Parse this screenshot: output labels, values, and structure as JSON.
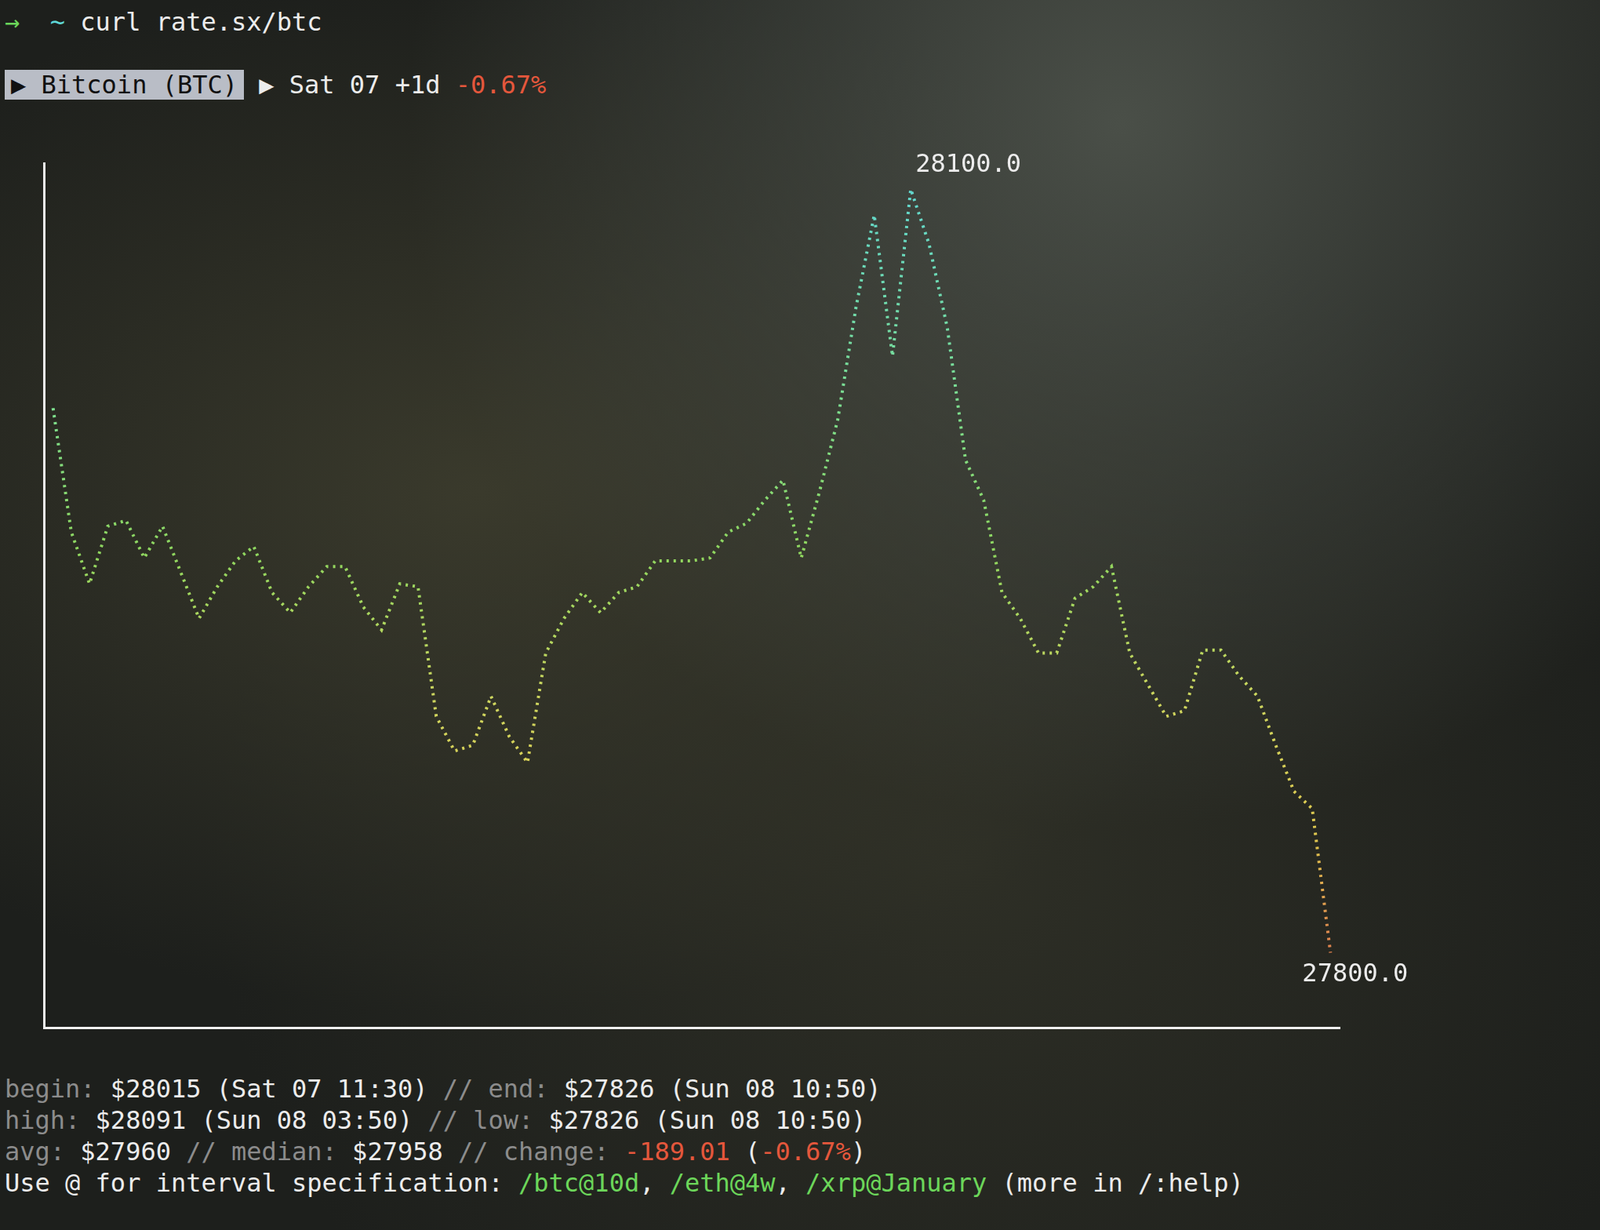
{
  "prompt": [
    {
      "text": "→",
      "style": "green"
    },
    {
      "text": "  ",
      "style": "bright"
    },
    {
      "text": "~",
      "style": "cyan"
    },
    {
      "text": " curl rate.sx/btc",
      "style": "bright"
    }
  ],
  "header": [
    {
      "text": "▶ Bitcoin (BTC)",
      "style": "box"
    },
    {
      "text": " ▶ Sat 07 +1d ",
      "style": "bright"
    },
    {
      "text": "-0.67%",
      "style": "red"
    }
  ],
  "chart_data": {
    "type": "line",
    "categories": [
      null,
      null,
      null,
      null,
      null,
      null,
      null,
      null,
      null,
      null,
      null,
      null,
      null,
      null,
      null,
      null,
      null,
      null,
      null,
      null,
      null,
      null,
      null,
      null,
      null,
      null,
      null,
      null,
      null,
      null,
      null,
      null,
      null,
      null,
      null,
      null,
      null,
      null,
      null,
      null,
      null,
      null,
      null,
      null,
      null,
      null,
      null,
      null,
      null,
      null,
      null,
      null,
      null,
      null,
      null,
      null,
      null,
      null,
      null,
      null,
      null,
      null,
      null,
      null,
      null,
      null,
      null,
      null,
      null,
      null,
      null
    ],
    "values": [
      28015,
      27972,
      27954,
      27974,
      27976,
      27963,
      27974,
      27958,
      27942,
      27953,
      27962,
      27967,
      27951,
      27944,
      27953,
      27960,
      27960,
      27946,
      27938,
      27954,
      27953,
      27908,
      27896,
      27898,
      27915,
      27901,
      27892,
      27930,
      27942,
      27951,
      27944,
      27951,
      27953,
      27962,
      27962,
      27962,
      27963,
      27972,
      27975,
      27983,
      27990,
      27963,
      27986,
      28011,
      28050,
      28082,
      28033,
      28091,
      28072,
      28043,
      27997,
      27983,
      27951,
      27942,
      27930,
      27930,
      27949,
      27953,
      27960,
      27930,
      27919,
      27908,
      27910,
      27931,
      27931,
      27922,
      27915,
      27898,
      27882,
      27876,
      27826
    ],
    "ylim": [
      27800,
      28100
    ],
    "tick_labels": false,
    "grid": false,
    "line_style": "dotted",
    "marker": "none",
    "annotations": [
      {
        "text": "28100.0"
      },
      {
        "text": "27800.0"
      }
    ]
  },
  "footer": [
    [
      {
        "text": "begin:",
        "style": "dim"
      },
      {
        "text": " $28015 (Sat 07 11:30) ",
        "style": "bright"
      },
      {
        "text": "// end:",
        "style": "dim"
      },
      {
        "text": " $27826 (Sun 08 10:50)",
        "style": "bright"
      }
    ],
    [
      {
        "text": "high:",
        "style": "dim"
      },
      {
        "text": " $28091 (Sun 08 03:50) ",
        "style": "bright"
      },
      {
        "text": "// low:",
        "style": "dim"
      },
      {
        "text": " $27826 (Sun 08 10:50)",
        "style": "bright"
      }
    ],
    [
      {
        "text": "avg:",
        "style": "dim"
      },
      {
        "text": " $27960 ",
        "style": "bright"
      },
      {
        "text": "// median:",
        "style": "dim"
      },
      {
        "text": " $27958 ",
        "style": "bright"
      },
      {
        "text": "// change: ",
        "style": "dim"
      },
      {
        "text": "-189.01",
        "style": "red"
      },
      {
        "text": " (",
        "style": "bright"
      },
      {
        "text": "-0.67%",
        "style": "red"
      },
      {
        "text": ")",
        "style": "bright"
      }
    ],
    [
      {
        "text": "Use @ for interval specification: ",
        "style": "bright"
      },
      {
        "text": "/btc@10d",
        "style": "green"
      },
      {
        "text": ", ",
        "style": "bright"
      },
      {
        "text": "/eth@4w",
        "style": "green"
      },
      {
        "text": ", ",
        "style": "bright"
      },
      {
        "text": "/xrp@January",
        "style": "green"
      },
      {
        "text": " (more in /:help)",
        "style": "bright"
      }
    ]
  ]
}
